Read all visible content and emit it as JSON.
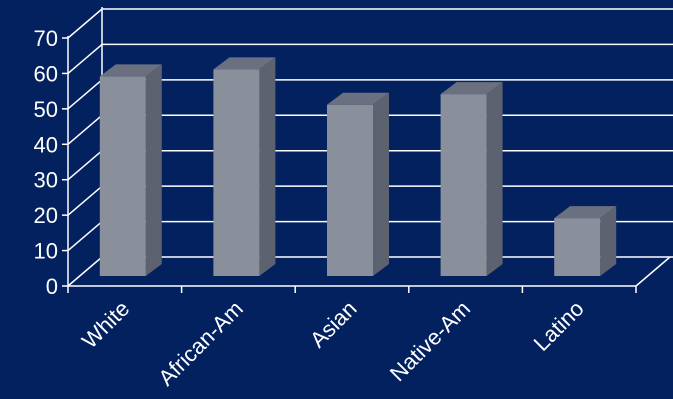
{
  "chart_data": {
    "type": "bar",
    "title": "",
    "xlabel": "",
    "ylabel": "",
    "categories": [
      "White",
      "African-Am",
      "Asian",
      "Native-Am",
      "Latino"
    ],
    "values": [
      60,
      62,
      52,
      55,
      20
    ],
    "ylim": [
      0,
      70
    ],
    "yticks": [
      "0",
      "10",
      "20",
      "30",
      "40",
      "50",
      "60",
      "70"
    ],
    "grid": true,
    "legend": "none",
    "colors": {
      "background": "#03205f",
      "bar_front": "#8a8f9c",
      "bar_side": "#5d6270",
      "bar_top": "#6b7080",
      "grid": "#ffffff",
      "text": "#ffffff"
    }
  }
}
